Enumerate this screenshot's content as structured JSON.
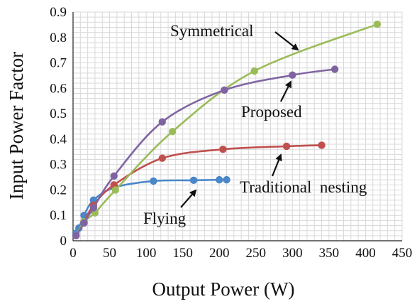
{
  "chart_data": {
    "type": "line",
    "xlabel": "Output Power  (W)",
    "ylabel": "Input Power Factor",
    "xlim": [
      0,
      450
    ],
    "ylim": [
      0,
      0.9
    ],
    "xticks": [
      0,
      50,
      100,
      150,
      200,
      250,
      300,
      350,
      400,
      450
    ],
    "yticks": [
      0,
      0.1,
      0.2,
      0.3,
      0.4,
      0.5,
      0.6,
      0.7,
      0.8,
      0.9
    ],
    "grid": "on",
    "legend": "none",
    "series": [
      {
        "name": "Flying",
        "color": "#4a86c8",
        "points": [
          [
            4,
            0.03
          ],
          [
            8,
            0.05
          ],
          [
            15,
            0.1
          ],
          [
            28,
            0.16
          ],
          [
            57,
            0.21
          ],
          [
            110,
            0.235
          ],
          [
            165,
            0.238
          ],
          [
            200,
            0.24
          ],
          [
            210,
            0.24
          ]
        ]
      },
      {
        "name": "Traditional nesting",
        "color": "#c0504d",
        "points": [
          [
            4,
            0.02
          ],
          [
            15,
            0.075
          ],
          [
            28,
            0.14
          ],
          [
            56,
            0.22
          ],
          [
            122,
            0.325
          ],
          [
            205,
            0.36
          ],
          [
            292,
            0.372
          ],
          [
            340,
            0.376
          ]
        ]
      },
      {
        "name": "Symmetrical",
        "color": "#9bbb59",
        "points": [
          [
            4,
            0.02
          ],
          [
            15,
            0.075
          ],
          [
            30,
            0.11
          ],
          [
            58,
            0.2
          ],
          [
            136,
            0.43
          ],
          [
            248,
            0.668
          ],
          [
            416,
            0.852
          ]
        ]
      },
      {
        "name": "Proposed",
        "color": "#8064a2",
        "points": [
          [
            4,
            0.02
          ],
          [
            15,
            0.07
          ],
          [
            28,
            0.13
          ],
          [
            56,
            0.255
          ],
          [
            122,
            0.468
          ],
          [
            207,
            0.593
          ],
          [
            300,
            0.652
          ],
          [
            358,
            0.675
          ]
        ]
      }
    ],
    "annotations": [
      {
        "text": "Symmetrical",
        "series": "Symmetrical",
        "point": [
          372,
          0.78
        ]
      },
      {
        "text": "Proposed",
        "series": "Proposed",
        "point": [
          302,
          0.63
        ]
      },
      {
        "text": "Traditional  nesting",
        "series": "Traditional nesting",
        "point": [
          290,
          0.362
        ]
      },
      {
        "text": "Flying",
        "series": "Flying",
        "point": [
          168,
          0.232
        ]
      }
    ]
  }
}
